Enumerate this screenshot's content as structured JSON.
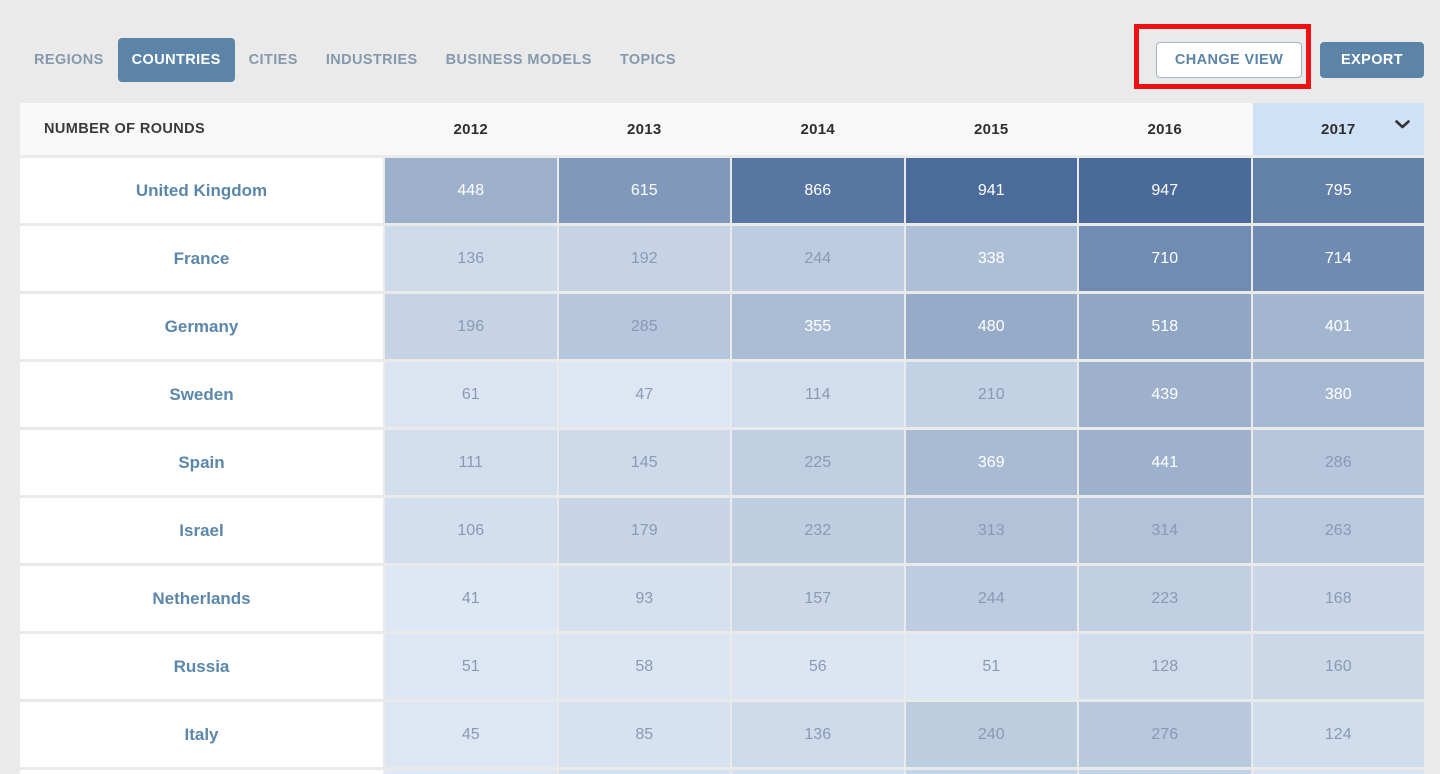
{
  "tabs": [
    {
      "label": "REGIONS",
      "active": false
    },
    {
      "label": "COUNTRIES",
      "active": true
    },
    {
      "label": "CITIES",
      "active": false
    },
    {
      "label": "INDUSTRIES",
      "active": false
    },
    {
      "label": "BUSINESS MODELS",
      "active": false
    },
    {
      "label": "TOPICS",
      "active": false
    }
  ],
  "actions": {
    "change_view_label": "CHANGE VIEW",
    "export_label": "EXPORT"
  },
  "annotation": {
    "shape": "red-box",
    "target": "change-view-button",
    "color": "#ee1111"
  },
  "chart_data": {
    "type": "heatmap",
    "title": "NUMBER OF ROUNDS",
    "columns": [
      "2012",
      "2013",
      "2014",
      "2015",
      "2016",
      "2017"
    ],
    "sorted_column": "2017",
    "sort_indicator": "chevron-down",
    "rows": [
      {
        "country": "United Kingdom",
        "values": [
          448,
          615,
          866,
          941,
          947,
          795
        ]
      },
      {
        "country": "France",
        "values": [
          136,
          192,
          244,
          338,
          710,
          714
        ]
      },
      {
        "country": "Germany",
        "values": [
          196,
          285,
          355,
          480,
          518,
          401
        ]
      },
      {
        "country": "Sweden",
        "values": [
          61,
          47,
          114,
          210,
          439,
          380
        ]
      },
      {
        "country": "Spain",
        "values": [
          111,
          145,
          225,
          369,
          441,
          286
        ]
      },
      {
        "country": "Israel",
        "values": [
          106,
          179,
          232,
          313,
          314,
          263
        ]
      },
      {
        "country": "Netherlands",
        "values": [
          41,
          93,
          157,
          244,
          223,
          168
        ]
      },
      {
        "country": "Russia",
        "values": [
          51,
          58,
          56,
          51,
          128,
          160
        ]
      },
      {
        "country": "Italy",
        "values": [
          45,
          85,
          136,
          240,
          276,
          124
        ]
      }
    ],
    "partial_row_colors": [
      "#dee9f3",
      "#d6e1ef",
      "#d4dfee",
      "#c5d3e6",
      "#c2d0e3",
      "#dae4f1"
    ]
  },
  "colors": {
    "accent": "#5b84a8",
    "heat_low": "#dee8f4",
    "heat_high": "#4a6b9a",
    "sorted_header_bg": "#cfe1f7",
    "light_cell_text": "#8a99b5",
    "dark_cell_text": "#ffffff",
    "country_text": "#5b87aa",
    "annotation_red": "#ee1111"
  }
}
